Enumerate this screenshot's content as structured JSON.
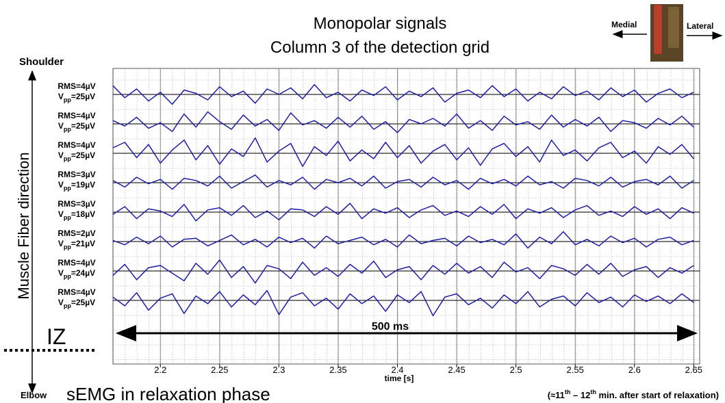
{
  "chart_data": {
    "type": "line",
    "title": "Monopolar signals",
    "subtitle": "Column 3 of the detection grid",
    "x_label": "time [s]",
    "annotations": {
      "top": "Shoulder",
      "bottom": "Elbow",
      "direction": "Muscle Fiber direction",
      "iz": "IZ",
      "span": "500 ms",
      "medial": "Medial",
      "lateral": "Lateral",
      "caption": "sEMG in relaxation phase",
      "note": [
        "(≈11",
        "th",
        " – 12",
        "th",
        " min. after start of relaxation)"
      ]
    },
    "color": "#1c1ca8",
    "xlim": [
      2.16,
      2.655
    ],
    "xticks": [
      2.2,
      2.25,
      2.3,
      2.35,
      2.4,
      2.45,
      2.5,
      2.55,
      2.6,
      2.65
    ],
    "grid": true,
    "x": [
      2.16,
      2.17,
      2.18,
      2.19,
      2.2,
      2.21,
      2.22,
      2.23,
      2.24,
      2.25,
      2.26,
      2.27,
      2.28,
      2.29,
      2.3,
      2.31,
      2.32,
      2.33,
      2.34,
      2.35,
      2.36,
      2.37,
      2.38,
      2.39,
      2.4,
      2.41,
      2.42,
      2.43,
      2.44,
      2.45,
      2.46,
      2.47,
      2.48,
      2.49,
      2.5,
      2.51,
      2.52,
      2.53,
      2.54,
      2.55,
      2.56,
      2.57,
      2.58,
      2.59,
      2.6,
      2.61,
      2.62,
      2.63,
      2.64,
      2.65
    ],
    "series": [
      {
        "rms_label": "RMS=4µV",
        "vpp_label": [
          "V",
          "pp",
          "=25µV"
        ],
        "values": [
          8,
          -3,
          5,
          -6,
          2,
          -9,
          4,
          1,
          -5,
          7,
          -2,
          3,
          -8,
          5,
          0,
          6,
          -4,
          9,
          -3,
          2,
          -6,
          4,
          -1,
          7,
          -5,
          3,
          -2,
          6,
          -7,
          1,
          4,
          -3,
          8,
          -2,
          5,
          -6,
          2,
          -4,
          7,
          -1,
          3,
          -5,
          6,
          -2,
          4,
          -7,
          1,
          5,
          -3,
          2
        ]
      },
      {
        "rms_label": "RMS=4µV",
        "vpp_label": [
          "V",
          "pp",
          "=25µV"
        ],
        "values": [
          3,
          -2,
          6,
          -4,
          1,
          -7,
          9,
          -3,
          11,
          2,
          -5,
          8,
          -2,
          4,
          -6,
          10,
          -1,
          3,
          -4,
          6,
          -3,
          7,
          -5,
          2,
          -8,
          4,
          0,
          5,
          -2,
          9,
          -4,
          3,
          -6,
          7,
          -1,
          2,
          -5,
          8,
          -3,
          4,
          -2,
          6,
          -7,
          3,
          1,
          -4,
          5,
          -1,
          7,
          -3
        ]
      },
      {
        "rms_label": "RMS=4µV",
        "vpp_label": [
          "V",
          "pp",
          "=25µV"
        ],
        "values": [
          5,
          10,
          -4,
          8,
          -9,
          3,
          12,
          -6,
          7,
          -10,
          4,
          -3,
          14,
          -8,
          2,
          9,
          -12,
          6,
          -2,
          11,
          -7,
          3,
          -5,
          10,
          -4,
          7,
          -9,
          2,
          8,
          -6,
          5,
          -11,
          4,
          9,
          -3,
          6,
          -8,
          12,
          -2,
          3,
          -7,
          5,
          10,
          -4,
          2,
          -9,
          6,
          -1,
          8,
          -5
        ]
      },
      {
        "rms_label": "RMS=3µV",
        "vpp_label": [
          "V",
          "pp",
          "=19µV"
        ],
        "values": [
          2,
          -4,
          5,
          -1,
          3,
          -6,
          4,
          2,
          -3,
          6,
          -5,
          1,
          7,
          -4,
          2,
          -2,
          5,
          -6,
          3,
          0,
          4,
          -3,
          6,
          -5,
          1,
          3,
          -4,
          5,
          -2,
          2,
          -6,
          4,
          -1,
          3,
          -3,
          6,
          -2,
          1,
          -5,
          4,
          2,
          -3,
          5,
          -4,
          1,
          3,
          -2,
          6,
          -5,
          2
        ]
      },
      {
        "rms_label": "RMS=3µV",
        "vpp_label": [
          "V",
          "pp",
          "=18µV"
        ],
        "values": [
          -2,
          5,
          -6,
          3,
          1,
          -4,
          7,
          -8,
          2,
          4,
          -3,
          6,
          -5,
          1,
          -7,
          3,
          2,
          -4,
          5,
          -2,
          8,
          -6,
          3,
          -1,
          4,
          -5,
          2,
          6,
          -3,
          1,
          -4,
          5,
          -2,
          7,
          -6,
          3,
          -1,
          4,
          -5,
          2,
          6,
          -3,
          1,
          -4,
          5,
          -2,
          3,
          -6,
          4,
          -1
        ]
      },
      {
        "rms_label": "RMS=2µV",
        "vpp_label": [
          "V",
          "pp",
          "=21µV"
        ],
        "values": [
          1,
          -3,
          4,
          -2,
          5,
          -5,
          2,
          3,
          -4,
          1,
          6,
          -3,
          2,
          -5,
          4,
          -1,
          3,
          -6,
          5,
          -2,
          1,
          4,
          -3,
          2,
          -5,
          6,
          -2,
          1,
          3,
          -4,
          5,
          -1,
          2,
          -3,
          7,
          -6,
          4,
          -2,
          9,
          -3,
          2,
          -4,
          5,
          -1,
          3,
          -5,
          2,
          4,
          -3,
          1
        ]
      },
      {
        "rms_label": "RMS=4µV",
        "vpp_label": [
          "V",
          "pp",
          "=24µV"
        ],
        "values": [
          -4,
          6,
          -8,
          3,
          5,
          -2,
          -9,
          7,
          -3,
          10,
          -6,
          4,
          -11,
          5,
          2,
          -7,
          8,
          -4,
          3,
          -5,
          6,
          -2,
          9,
          -6,
          1,
          4,
          -8,
          5,
          -3,
          7,
          -2,
          4,
          -6,
          8,
          -1,
          3,
          -7,
          5,
          2,
          -4,
          6,
          -3,
          7,
          -5,
          1,
          4,
          -6,
          3,
          -2,
          5
        ]
      },
      {
        "rms_label": "RMS=4µV",
        "vpp_label": [
          "V",
          "pp",
          "=25µV"
        ],
        "values": [
          3,
          -5,
          7,
          -9,
          2,
          6,
          -12,
          4,
          -3,
          8,
          -6,
          5,
          -4,
          9,
          -13,
          3,
          7,
          -5,
          2,
          -8,
          6,
          -3,
          4,
          -10,
          5,
          -2,
          8,
          -14,
          3,
          6,
          -4,
          2,
          -7,
          5,
          -3,
          8,
          -6,
          1,
          4,
          -5,
          7,
          -2,
          3,
          -6,
          5,
          -1,
          4,
          -3,
          6,
          -2
        ]
      }
    ]
  }
}
